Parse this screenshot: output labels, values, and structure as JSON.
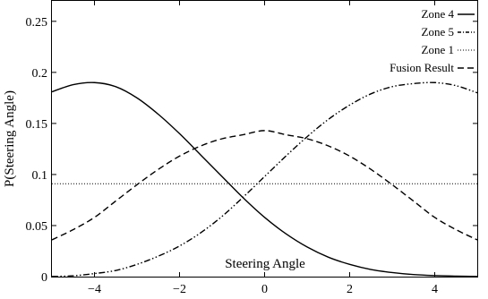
{
  "chart_data": {
    "type": "line",
    "title": "",
    "xlabel": "Steering Angle",
    "ylabel": "P(Steering Angle)",
    "xlim": [
      -5,
      5
    ],
    "ylim": [
      0,
      0.27
    ],
    "xticks": [
      -4,
      -2,
      0,
      2,
      4
    ],
    "xtick_labels": [
      "−4",
      "−2",
      "0",
      "2",
      "4"
    ],
    "yticks": [
      0,
      0.05,
      0.1,
      0.15,
      0.2,
      0.25
    ],
    "ytick_labels": [
      "0",
      "0.05",
      "0.1",
      "0.15",
      "0.2",
      "0.25"
    ],
    "grid": false,
    "legend_position": "top-right",
    "x": [
      -5,
      -4.5,
      -4,
      -3.5,
      -3,
      -2.5,
      -2,
      -1.5,
      -1,
      -0.5,
      0,
      0.5,
      1,
      1.5,
      2,
      2.5,
      3,
      3.5,
      4,
      4.5,
      5
    ],
    "series": [
      {
        "name": "Zone 4",
        "color": "#000000",
        "dash": "solid",
        "values": [
          0.181,
          0.188,
          0.19,
          0.186,
          0.175,
          0.159,
          0.14,
          0.119,
          0.098,
          0.077,
          0.058,
          0.042,
          0.029,
          0.019,
          0.012,
          0.007,
          0.004,
          0.002,
          0.001,
          0.0005,
          0.0002
        ]
      },
      {
        "name": "Zone 5",
        "color": "#000000",
        "dash": "dash-dot-dot",
        "values": [
          0.0002,
          0.0008,
          0.003,
          0.006,
          0.012,
          0.02,
          0.03,
          0.043,
          0.059,
          0.078,
          0.098,
          0.118,
          0.137,
          0.154,
          0.168,
          0.179,
          0.186,
          0.189,
          0.19,
          0.187,
          0.18
        ]
      },
      {
        "name": "Zone 1",
        "color": "#000000",
        "dash": "dotted",
        "values": [
          0.091,
          0.091,
          0.091,
          0.091,
          0.091,
          0.091,
          0.091,
          0.091,
          0.091,
          0.091,
          0.091,
          0.091,
          0.091,
          0.091,
          0.091,
          0.091,
          0.091,
          0.091,
          0.091,
          0.091,
          0.091
        ]
      },
      {
        "name": "Fusion Result",
        "color": "#000000",
        "dash": "dashed",
        "values": [
          0.036,
          0.046,
          0.058,
          0.074,
          0.09,
          0.105,
          0.118,
          0.128,
          0.135,
          0.139,
          0.143,
          0.139,
          0.135,
          0.128,
          0.118,
          0.105,
          0.09,
          0.074,
          0.058,
          0.046,
          0.036
        ]
      }
    ]
  }
}
